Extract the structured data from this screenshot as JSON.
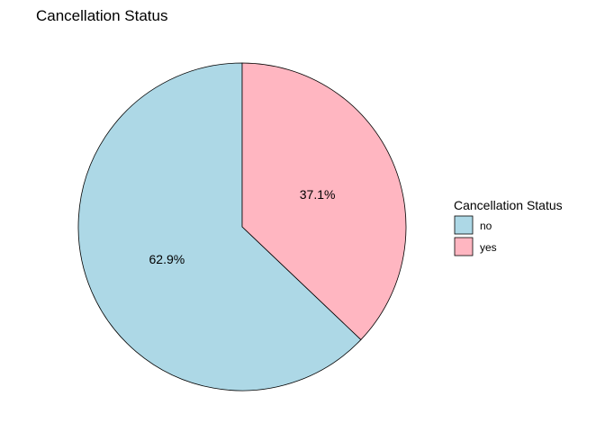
{
  "chart_data": {
    "type": "pie",
    "title": "Cancellation Status",
    "legend": {
      "title": "Cancellation Status",
      "placement": "right"
    },
    "slices": [
      {
        "category": "no",
        "percent": 62.9,
        "label": "62.9%",
        "color": "#add8e6"
      },
      {
        "category": "yes",
        "percent": 37.1,
        "label": "37.1%",
        "color": "#ffb6c1"
      }
    ],
    "start": "12 o'clock",
    "direction": "counter-clockwise for no, yes on right"
  }
}
